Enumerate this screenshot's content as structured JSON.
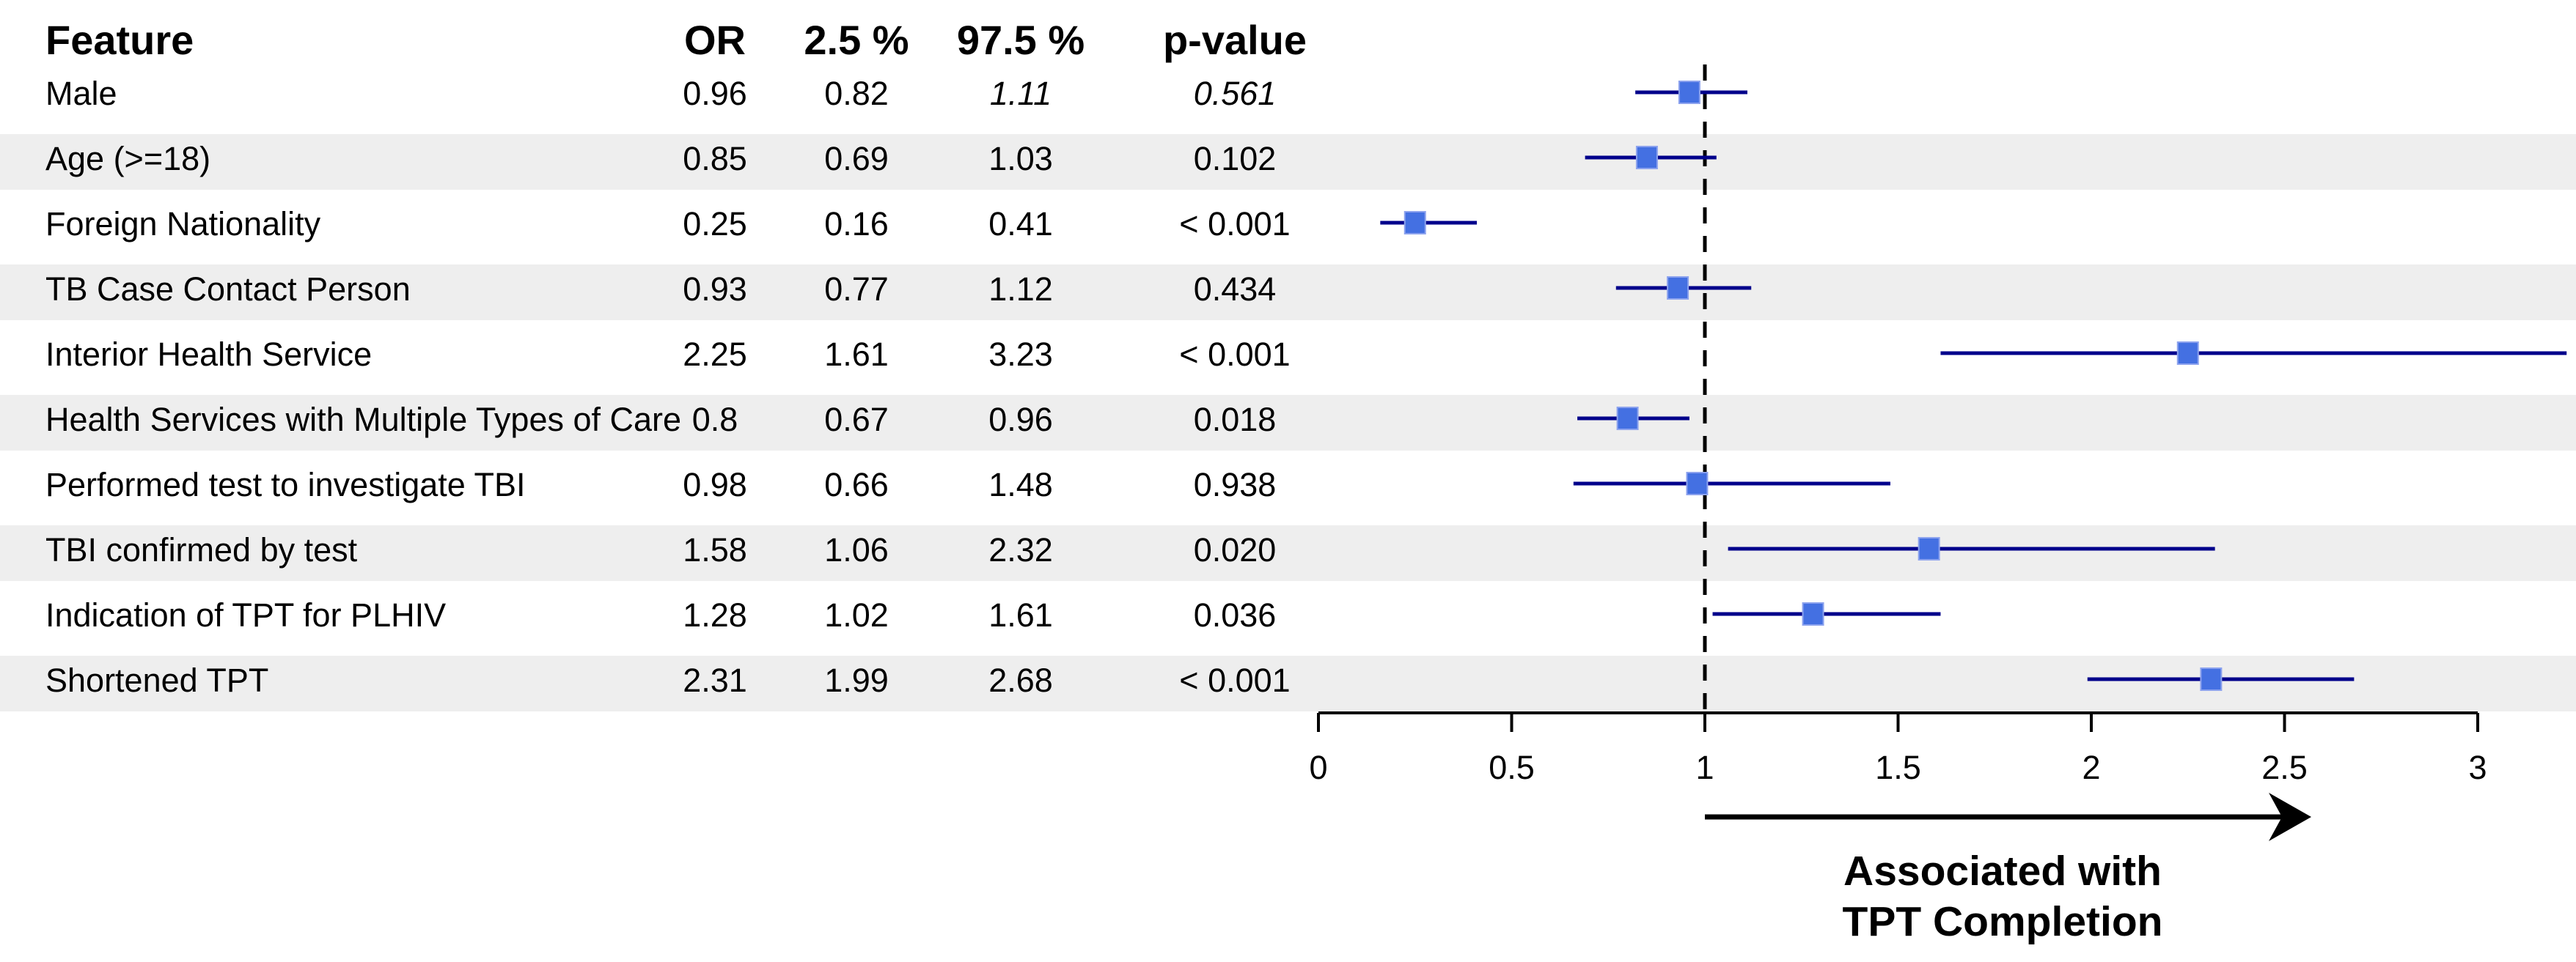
{
  "chart_data": {
    "type": "forest",
    "columns": {
      "feature": "Feature",
      "or": "OR",
      "ci_low": "2.5 %",
      "ci_high": "97.5 %",
      "p": "p-value"
    },
    "rows": [
      {
        "feature": "Male",
        "or": "0.96",
        "ci_low": "0.82",
        "ci_high": "1.11",
        "p": "0.561",
        "italic": [
          "ci_high",
          "p"
        ]
      },
      {
        "feature": "Age (>=18)",
        "or": "0.85",
        "ci_low": "0.69",
        "ci_high": "1.03",
        "p": "0.102"
      },
      {
        "feature": "Foreign Nationality",
        "or": "0.25",
        "ci_low": "0.16",
        "ci_high": "0.41",
        "p": "< 0.001"
      },
      {
        "feature": "TB Case Contact Person",
        "or": "0.93",
        "ci_low": "0.77",
        "ci_high": "1.12",
        "p": "0.434"
      },
      {
        "feature": "Interior Health Service",
        "or": "2.25",
        "ci_low": "1.61",
        "ci_high": "3.23",
        "p": "< 0.001"
      },
      {
        "feature": "Health Services with Multiple Types of Care",
        "or": "0.8",
        "ci_low": "0.67",
        "ci_high": "0.96",
        "p": "0.018"
      },
      {
        "feature": "Performed test to investigate TBI",
        "or": "0.98",
        "ci_low": "0.66",
        "ci_high": "1.48",
        "p": "0.938"
      },
      {
        "feature": "TBI confirmed by test",
        "or": "1.58",
        "ci_low": "1.06",
        "ci_high": "2.32",
        "p": "0.020"
      },
      {
        "feature": "Indication of TPT for PLHIV",
        "or": "1.28",
        "ci_low": "1.02",
        "ci_high": "1.61",
        "p": "0.036"
      },
      {
        "feature": "Shortened TPT",
        "or": "2.31",
        "ci_low": "1.99",
        "ci_high": "2.68",
        "p": "< 0.001"
      }
    ],
    "x_axis": {
      "range": [
        0,
        3
      ],
      "tick_values": [
        0,
        0.5,
        1,
        1.5,
        2,
        2.5,
        3
      ],
      "tick_labels": [
        "0",
        "0.5",
        "1",
        "1.5",
        "2",
        "2.5",
        "3"
      ],
      "reference_line": 1,
      "grid": false
    },
    "annotation": {
      "arrow_from": 1,
      "arrow_to": 2.57,
      "line1": "Associated with",
      "line2": "TPT Completion"
    },
    "colors": {
      "marker": "#4470E2",
      "marker_edge": "#8CA2EE",
      "ci_line": "#00008B",
      "stripe": "#EEEEEE",
      "axis": "#000000",
      "text": "#000000"
    }
  }
}
